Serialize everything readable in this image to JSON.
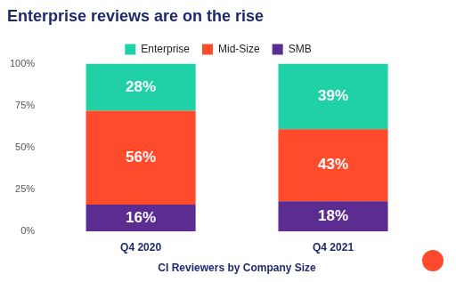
{
  "chart_data": {
    "type": "bar",
    "title": "Enterprise reviews are on the rise",
    "x_label": "CI Reviewers by Company Size",
    "categories": [
      "Q4 2020",
      "Q4 2021"
    ],
    "series": [
      {
        "name": "Enterprise",
        "color": "#1fd1a5",
        "values": [
          28,
          39
        ],
        "value_labels": [
          "28%",
          "39%"
        ]
      },
      {
        "name": "Mid-Size",
        "color": "#ff4a2b",
        "values": [
          56,
          43
        ],
        "value_labels": [
          "56%",
          "43%"
        ]
      },
      {
        "name": "SMB",
        "color": "#5b2d90",
        "values": [
          16,
          18
        ],
        "value_labels": [
          "16%",
          "18%"
        ]
      }
    ],
    "stacked": true,
    "data_labels": true,
    "legend": "top",
    "grid": false,
    "ylim": [
      0,
      100
    ],
    "yticks": [
      {
        "value": 0,
        "label": "0%"
      },
      {
        "value": 25,
        "label": "25%"
      },
      {
        "value": 50,
        "label": "50%"
      },
      {
        "value": 75,
        "label": "75%"
      },
      {
        "value": 100,
        "label": "100%"
      }
    ]
  }
}
